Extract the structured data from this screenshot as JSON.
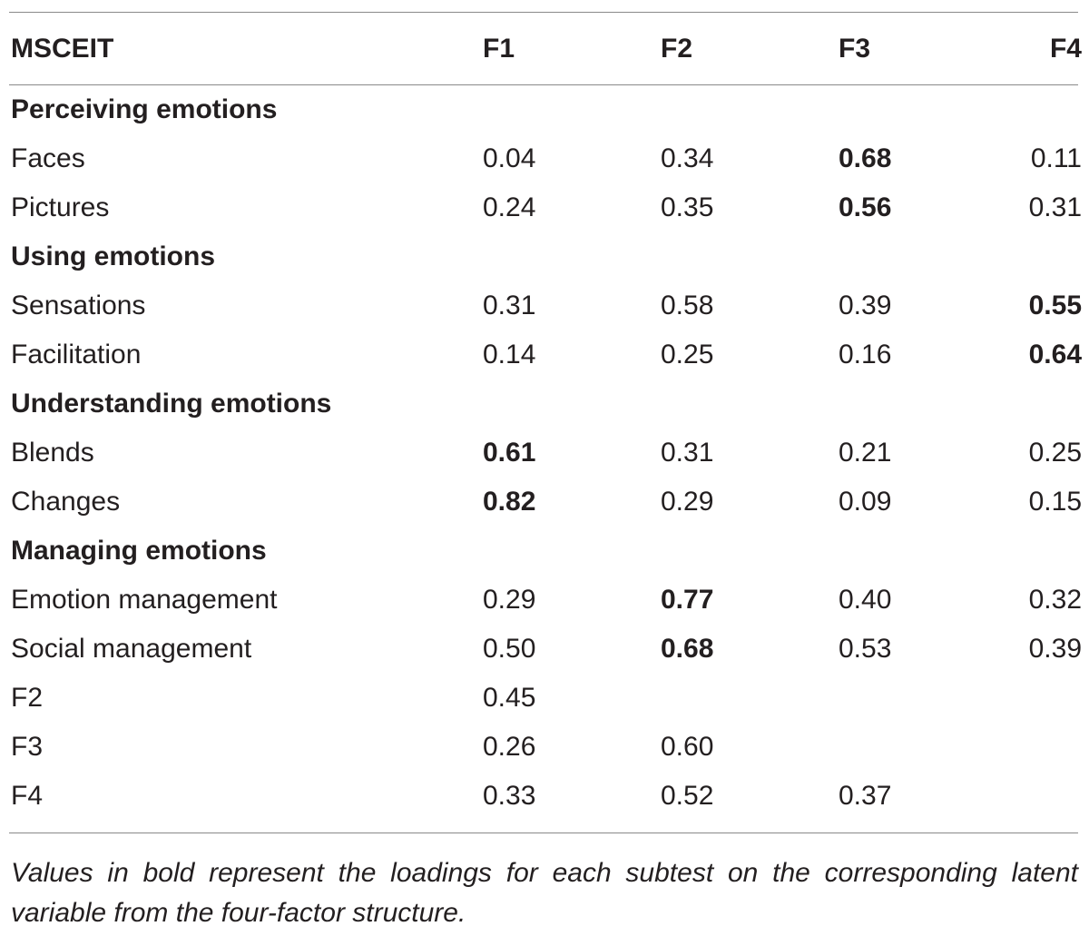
{
  "table": {
    "headers": [
      "MSCEIT",
      "F1",
      "F2",
      "F3",
      "F4"
    ],
    "rows": [
      {
        "type": "group",
        "label": "Perceiving emotions"
      },
      {
        "type": "data",
        "label": "Faces",
        "values": [
          "0.04",
          "0.34",
          "0.68",
          "0.11"
        ],
        "bold": [
          false,
          false,
          true,
          false
        ]
      },
      {
        "type": "data",
        "label": "Pictures",
        "values": [
          "0.24",
          "0.35",
          "0.56",
          "0.31"
        ],
        "bold": [
          false,
          false,
          true,
          false
        ]
      },
      {
        "type": "group",
        "label": "Using emotions"
      },
      {
        "type": "data",
        "label": "Sensations",
        "values": [
          "0.31",
          "0.58",
          "0.39",
          "0.55"
        ],
        "bold": [
          false,
          false,
          false,
          true
        ]
      },
      {
        "type": "data",
        "label": "Facilitation",
        "values": [
          "0.14",
          "0.25",
          "0.16",
          "0.64"
        ],
        "bold": [
          false,
          false,
          false,
          true
        ]
      },
      {
        "type": "group",
        "label": "Understanding emotions"
      },
      {
        "type": "data",
        "label": "Blends",
        "values": [
          "0.61",
          "0.31",
          "0.21",
          "0.25"
        ],
        "bold": [
          true,
          false,
          false,
          false
        ]
      },
      {
        "type": "data",
        "label": "Changes",
        "values": [
          "0.82",
          "0.29",
          "0.09",
          "0.15"
        ],
        "bold": [
          true,
          false,
          false,
          false
        ]
      },
      {
        "type": "group",
        "label": "Managing emotions"
      },
      {
        "type": "data",
        "label": "Emotion management",
        "values": [
          "0.29",
          "0.77",
          "0.40",
          "0.32"
        ],
        "bold": [
          false,
          true,
          false,
          false
        ]
      },
      {
        "type": "data",
        "label": "Social management",
        "values": [
          "0.50",
          "0.68",
          "0.53",
          "0.39"
        ],
        "bold": [
          false,
          true,
          false,
          false
        ]
      },
      {
        "type": "data",
        "label": "F2",
        "values": [
          "0.45",
          "",
          "",
          ""
        ],
        "bold": [
          false,
          false,
          false,
          false
        ]
      },
      {
        "type": "data",
        "label": "F3",
        "values": [
          "0.26",
          "0.60",
          "",
          ""
        ],
        "bold": [
          false,
          false,
          false,
          false
        ]
      },
      {
        "type": "data",
        "label": "F4",
        "values": [
          "0.33",
          "0.52",
          "0.37",
          ""
        ],
        "bold": [
          false,
          false,
          false,
          false
        ]
      }
    ]
  },
  "footnote": "Values in bold represent the loadings for each subtest on the corresponding latent variable from the four-factor structure."
}
